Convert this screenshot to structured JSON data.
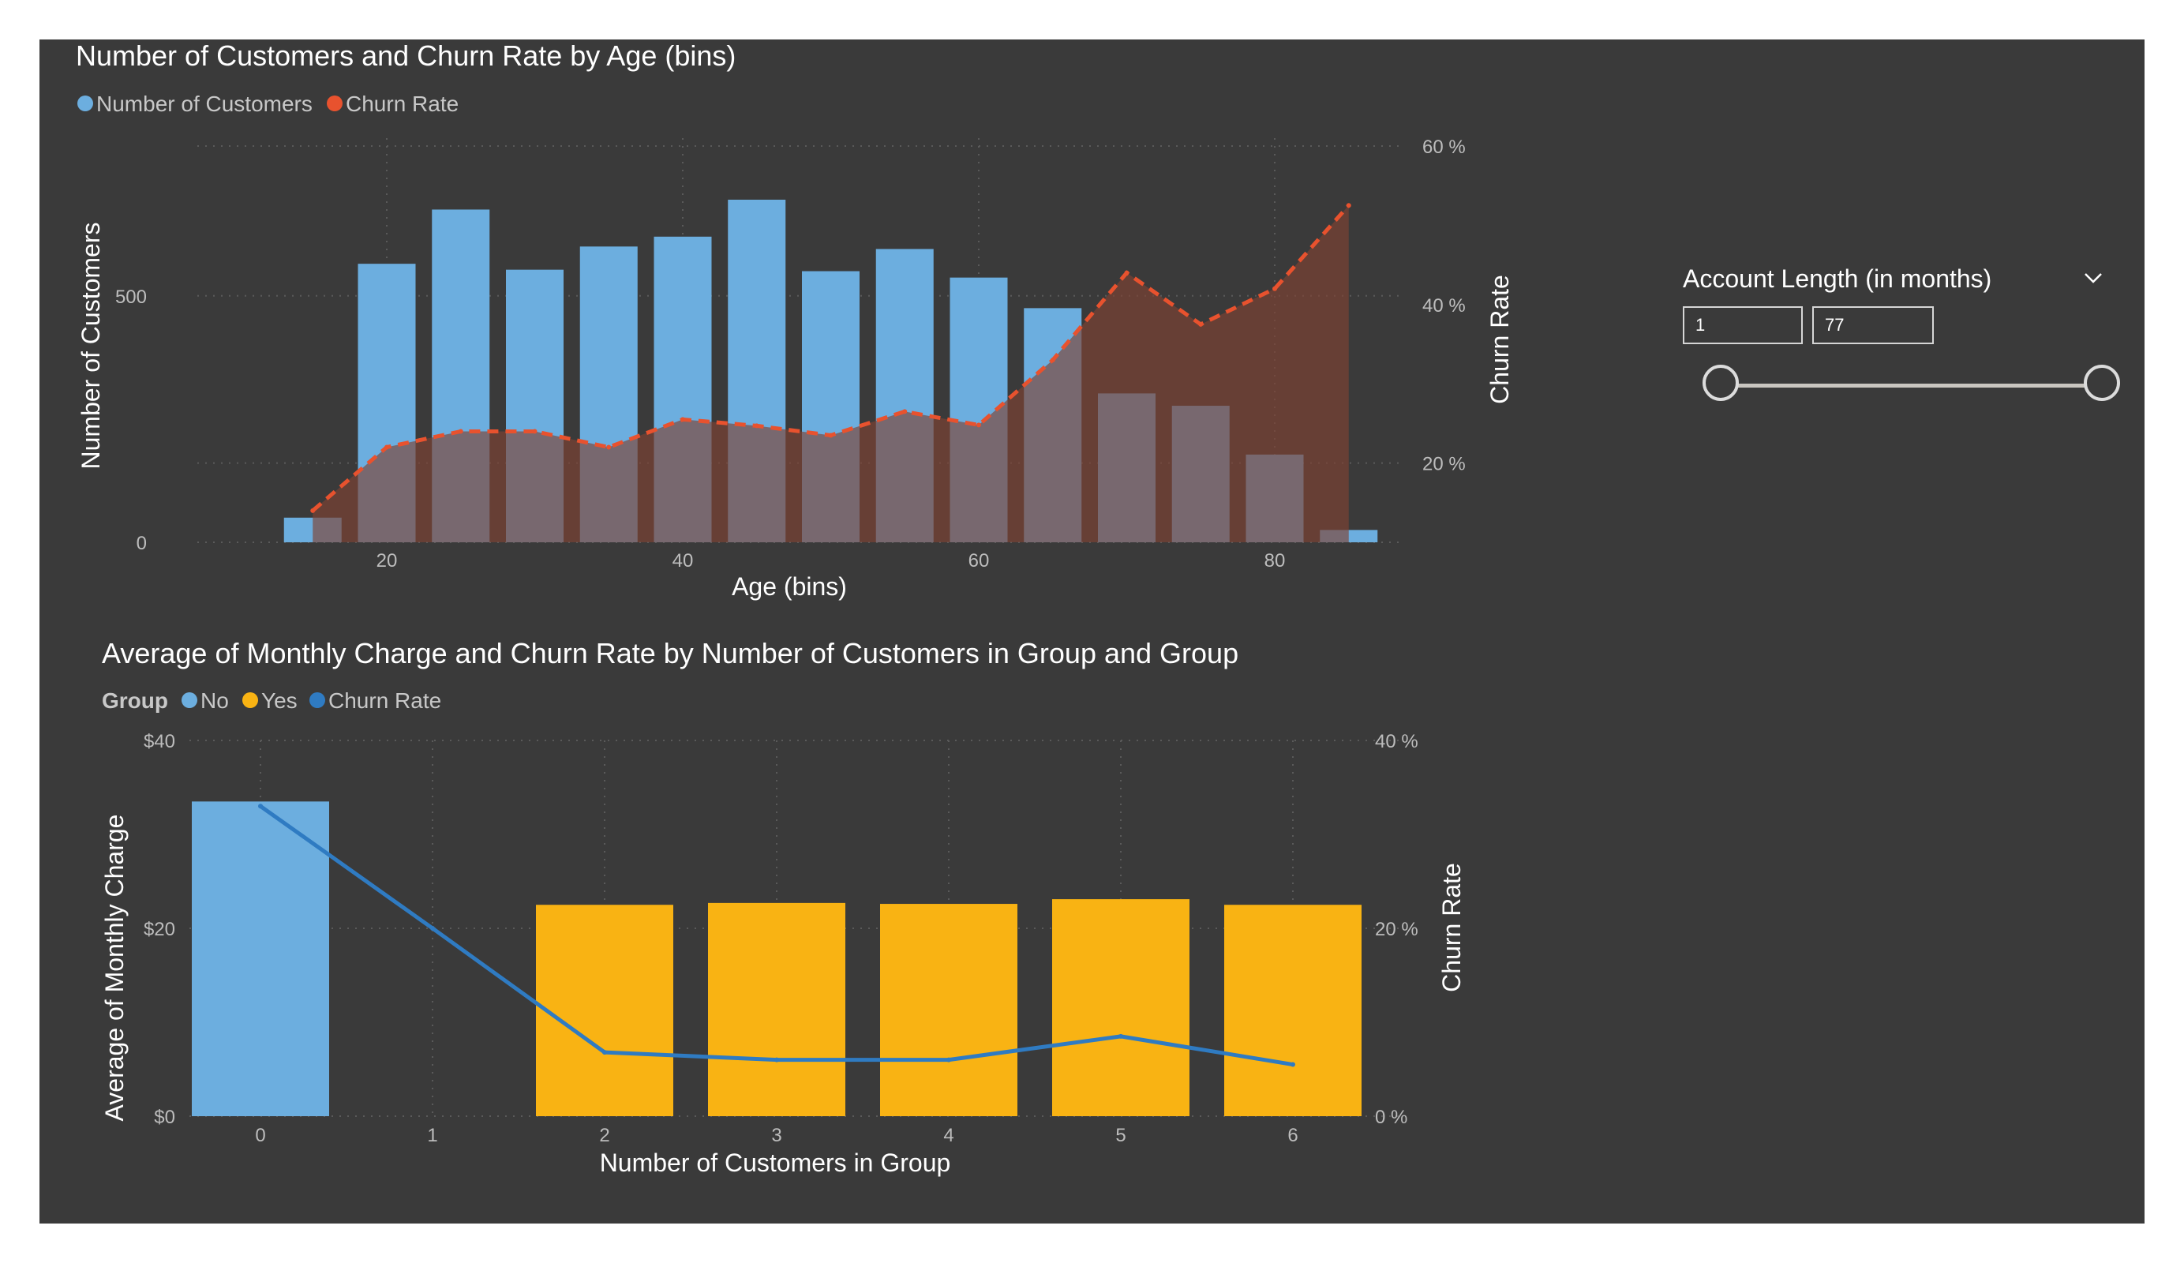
{
  "colors": {
    "background": "#3a3a3a",
    "customers_bar": "#6caedf",
    "churn_area": "#7f4233",
    "churn_line": "#e8522e",
    "overlap": "#a78f8f",
    "no_bar": "#6caedf",
    "yes_bar": "#f9b313",
    "group_churn_line": "#2f7bc2"
  },
  "slicer": {
    "title": "Account Length (in months)",
    "min_value": "1",
    "max_value": "77",
    "chevron_icon": "chevron-down-icon"
  },
  "chart_data": [
    {
      "type": "bar",
      "title": "Number of Customers and Churn Rate by Age (bins)",
      "legend": [
        "Number of Customers",
        "Churn Rate"
      ],
      "legend_position": "top-left",
      "xlabel": "Age (bins)",
      "ylabel": "Number of Customers",
      "y2label": "Churn Rate",
      "x_ticks": [
        "20",
        "40",
        "60",
        "80"
      ],
      "y_ticks": [
        "0",
        "500"
      ],
      "y2_ticks": [
        "20 %",
        "40 %",
        "60 %"
      ],
      "xlim": [
        10,
        90
      ],
      "ylim": [
        0,
        790
      ],
      "y2lim": [
        10,
        60
      ],
      "grid": true,
      "series": [
        {
          "name": "Number of Customers",
          "type": "bar",
          "x": [
            15,
            20,
            25,
            30,
            35,
            40,
            45,
            50,
            55,
            60,
            65,
            70,
            75,
            80,
            85
          ],
          "values": [
            50,
            565,
            675,
            553,
            600,
            620,
            695,
            550,
            595,
            537,
            475,
            302,
            277,
            178,
            25
          ]
        },
        {
          "name": "Churn Rate",
          "type": "area-line",
          "x": [
            15,
            20,
            25,
            30,
            35,
            40,
            45,
            50,
            55,
            60,
            65,
            70,
            75,
            80,
            85
          ],
          "values": [
            14,
            22,
            24,
            24,
            22,
            25.5,
            24.7,
            23.5,
            26.5,
            24.8,
            33,
            44,
            37.5,
            42,
            52.5
          ]
        }
      ]
    },
    {
      "type": "bar",
      "title": "Average of Monthly Charge and Churn Rate by Number of Customers in Group and Group",
      "legend_title": "Group",
      "legend": [
        "No",
        "Yes",
        "Churn Rate"
      ],
      "legend_position": "top-left",
      "xlabel": "Number of Customers in Group",
      "ylabel": "Average of Monthly Charge",
      "y2label": "Churn Rate",
      "categories": [
        "0",
        "1",
        "2",
        "3",
        "4",
        "5",
        "6"
      ],
      "y_ticks": [
        "$0",
        "$20",
        "$40"
      ],
      "y2_ticks": [
        "0 %",
        "20 %",
        "40 %"
      ],
      "ylim": [
        0,
        40
      ],
      "y2lim": [
        0,
        40
      ],
      "grid": true,
      "series": [
        {
          "name": "No",
          "type": "bar",
          "values": [
            33.5,
            null,
            null,
            null,
            null,
            null,
            null
          ]
        },
        {
          "name": "Yes",
          "type": "bar",
          "values": [
            null,
            null,
            22.5,
            22.7,
            22.6,
            23.1,
            22.5
          ]
        },
        {
          "name": "Churn Rate",
          "type": "line",
          "values": [
            33,
            20,
            6.8,
            6,
            6,
            8.5,
            5.5
          ]
        }
      ]
    }
  ]
}
